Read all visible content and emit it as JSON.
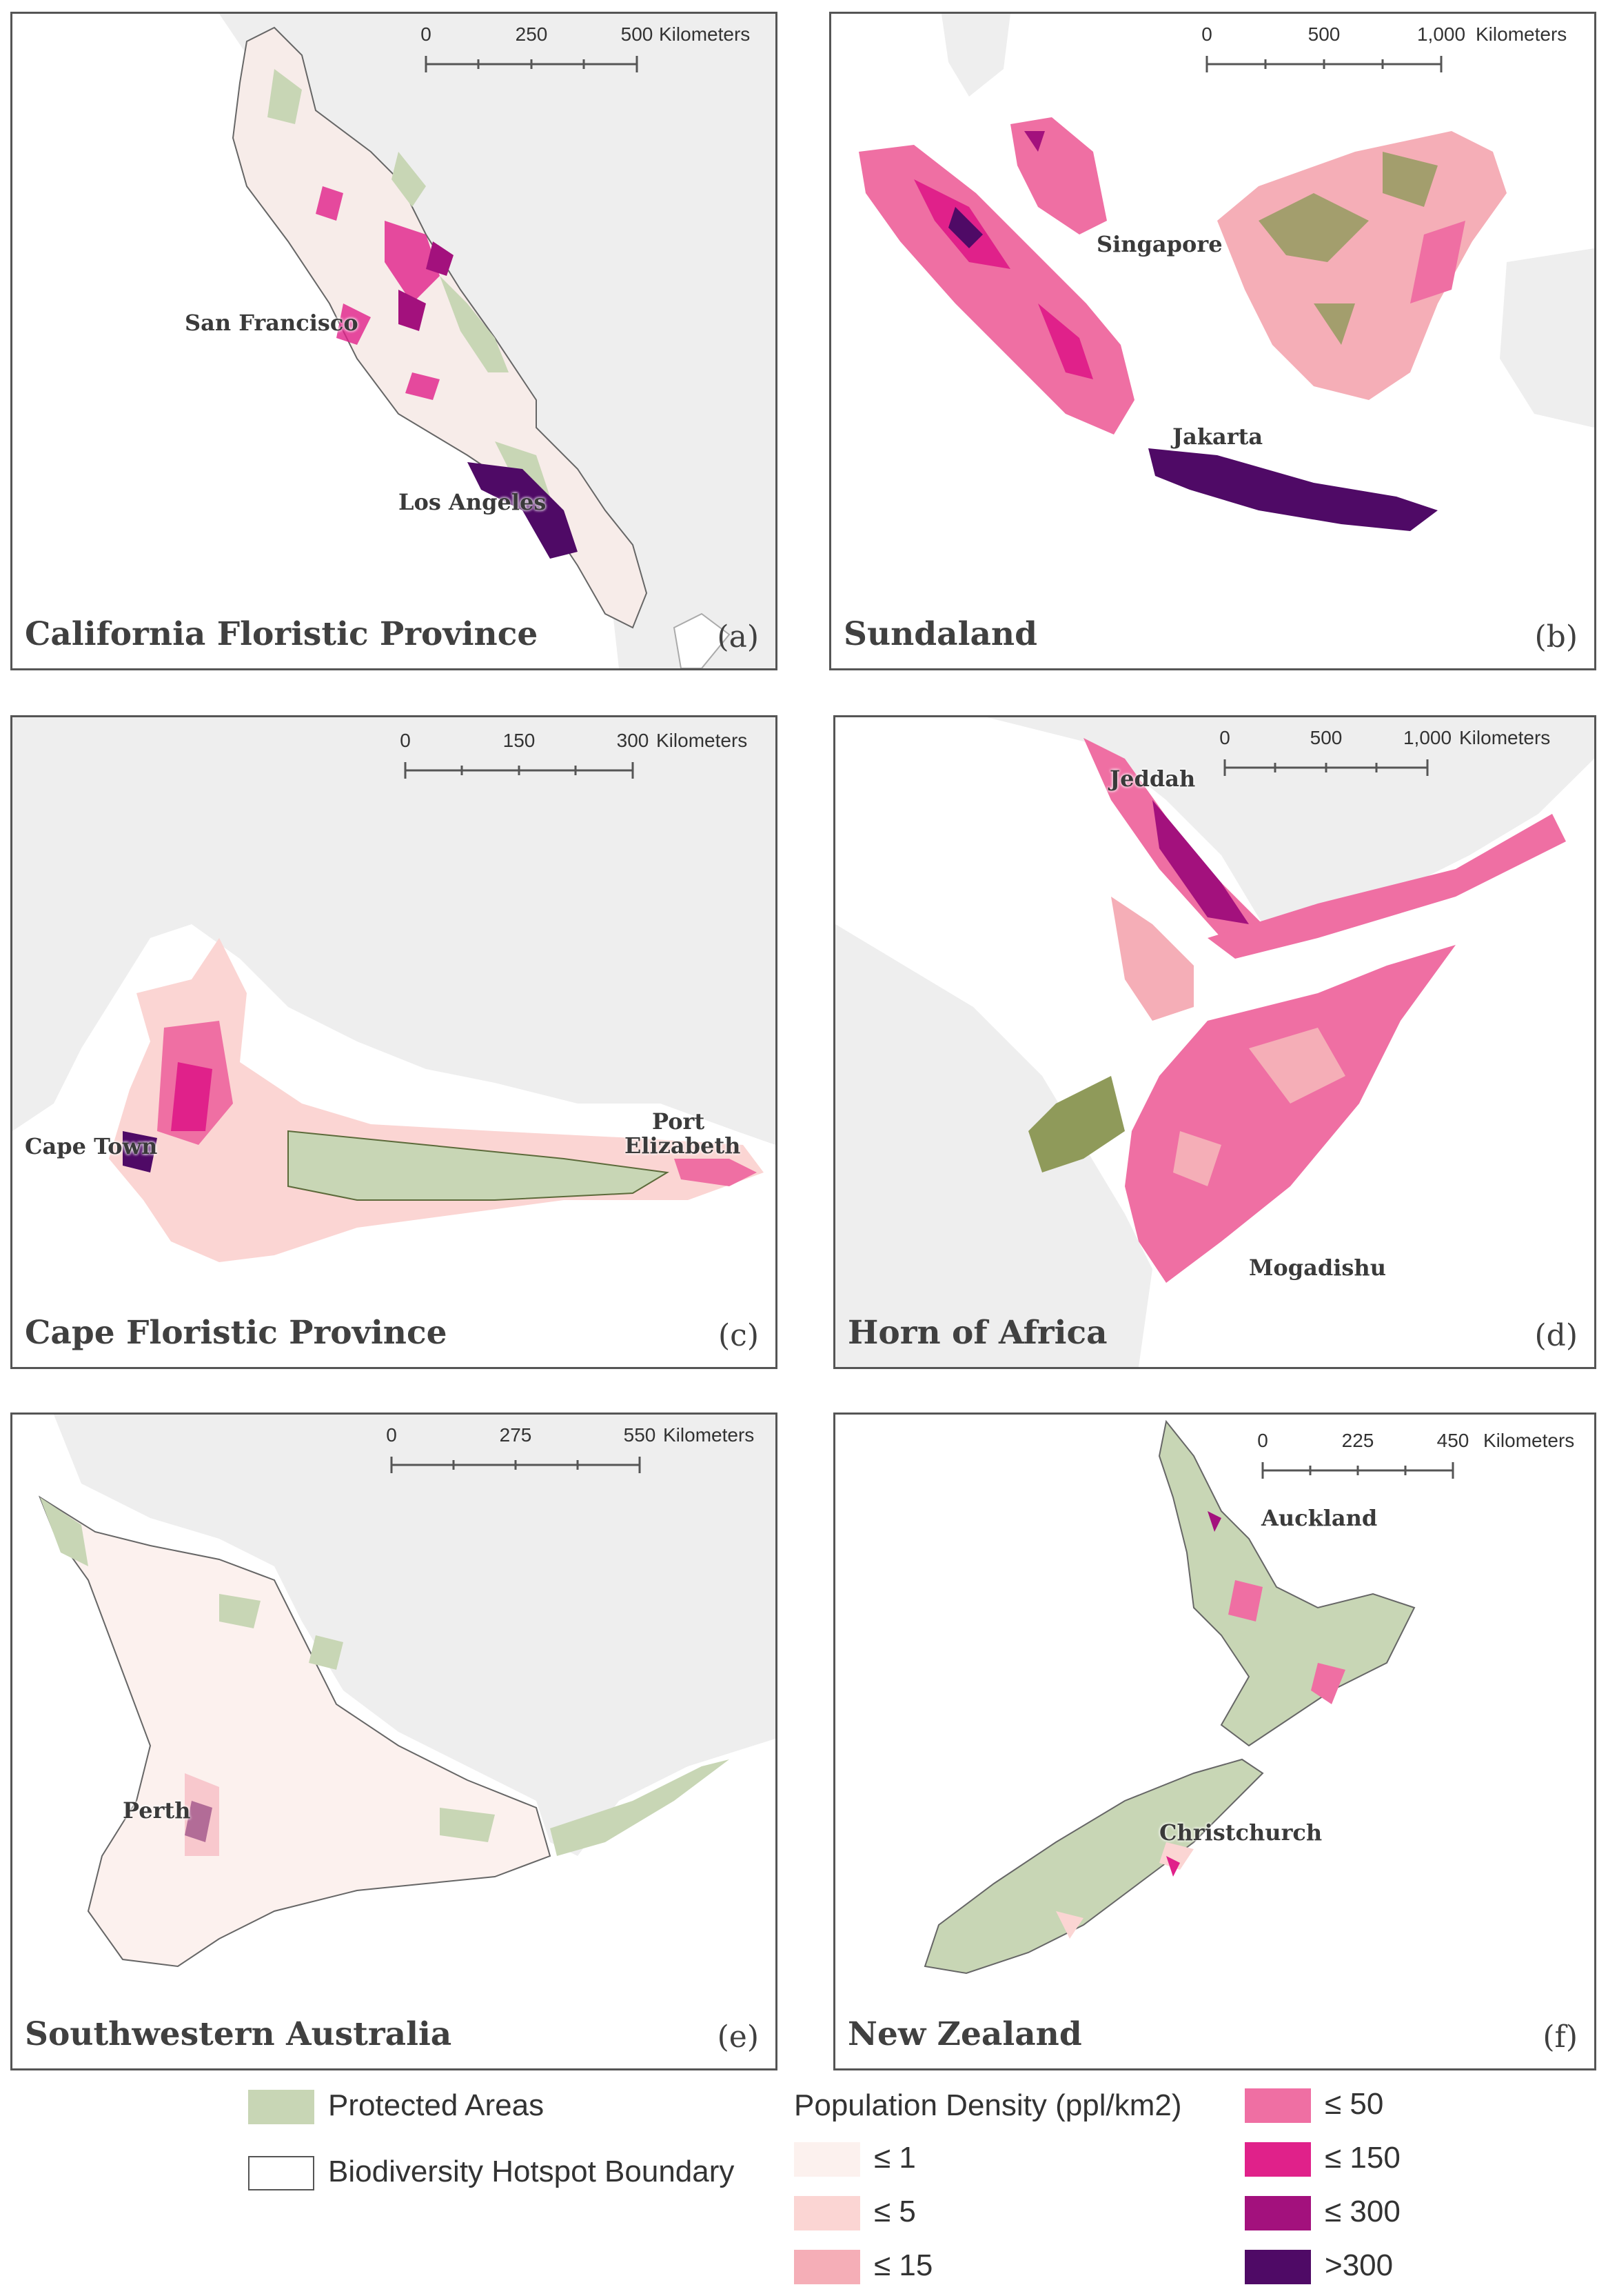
{
  "panels": [
    {
      "title": "California Floristic Province",
      "letter": "(a)",
      "cities": [
        "San Francisco",
        "Los Angeles"
      ],
      "scale": {
        "ticks": [
          "0",
          "250",
          "500"
        ],
        "unit": "Kilometers"
      }
    },
    {
      "title": "Sundaland",
      "letter": "(b)",
      "cities": [
        "Singapore",
        "Jakarta"
      ],
      "scale": {
        "ticks": [
          "0",
          "500",
          "1,000"
        ],
        "unit": "Kilometers"
      }
    },
    {
      "title": "Cape Floristic Province",
      "letter": "(c)",
      "cities": [
        "Cape Town",
        "Port",
        "Elizabeth"
      ],
      "scale": {
        "ticks": [
          "0",
          "150",
          "300"
        ],
        "unit": "Kilometers"
      }
    },
    {
      "title": "Horn of Africa",
      "letter": "(d)",
      "cities": [
        "Jeddah",
        "Mogadishu"
      ],
      "scale": {
        "ticks": [
          "0",
          "500",
          "1,000"
        ],
        "unit": "Kilometers"
      }
    },
    {
      "title": "Southwestern Australia",
      "letter": "(e)",
      "cities": [
        "Perth"
      ],
      "scale": {
        "ticks": [
          "0",
          "275",
          "550"
        ],
        "unit": "Kilometers"
      }
    },
    {
      "title": "New Zealand",
      "letter": "(f)",
      "cities": [
        "Auckland",
        "Christchurch"
      ],
      "scale": {
        "ticks": [
          "0",
          "225",
          "450"
        ],
        "unit": "Kilometers"
      }
    }
  ],
  "legend": {
    "protected_areas": "Protected Areas",
    "hotspot_boundary": "Biodiversity Hotspot Boundary",
    "density_title": "Population Density (ppl/km2)",
    "classes": [
      {
        "label": "≤ 1",
        "color": "#fcf1ee"
      },
      {
        "label": "≤ 5",
        "color": "#fbd5d3"
      },
      {
        "label": "≤ 15",
        "color": "#f5aeb7"
      },
      {
        "label": "≤ 50",
        "color": "#ef6fa3"
      },
      {
        "label": "≤ 150",
        "color": "#e0218a"
      },
      {
        "label": "≤ 300",
        "color": "#a3117d"
      },
      {
        "label": ">300",
        "color": "#4f0a66"
      }
    ],
    "protected_color": "#c8d6b5",
    "land_color": "#eeeeee"
  }
}
